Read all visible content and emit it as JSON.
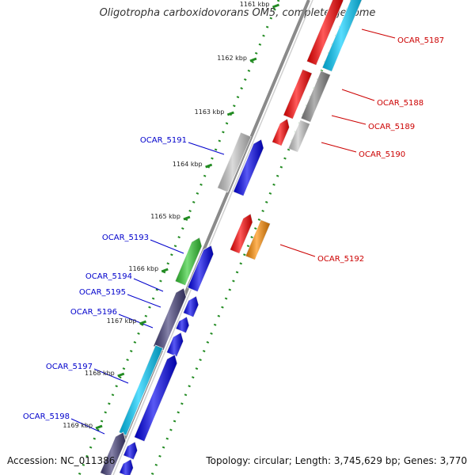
{
  "title": "Oligotropha carboxidovorans OM5, complete genome",
  "footer": {
    "accession": "Accession: NC_011386",
    "topology": "Topology: circular; Length: 3,745,629 bp; Genes: 3,770"
  },
  "ticks": [
    "1161 kbp",
    "1162 kbp",
    "1163 kbp",
    "1164 kbp",
    "1165 kbp",
    "1166 kbp",
    "1167 kbp",
    "1168 kbp",
    "1169 kbp"
  ],
  "genes_reverse": [
    "OCAR_5187",
    "OCAR_5188",
    "OCAR_5189",
    "OCAR_5190",
    "OCAR_5192"
  ],
  "genes_forward": [
    "OCAR_5191",
    "OCAR_5193",
    "OCAR_5194",
    "OCAR_5195",
    "OCAR_5196",
    "OCAR_5197",
    "OCAR_5198"
  ],
  "colors": {
    "reverse_label": "#cc0000",
    "forward_label": "#0000cc",
    "red": "#ff0000",
    "blue": "#0000ee",
    "cyan": "#00ccff",
    "gray": "#888888",
    "light_gray": "#c8c8c8",
    "orange": "#ff8c00",
    "green": "#33cc33",
    "dark_purple": "#443f7a",
    "tick_green": "#228B22",
    "backbone": "#8a8a8a"
  }
}
